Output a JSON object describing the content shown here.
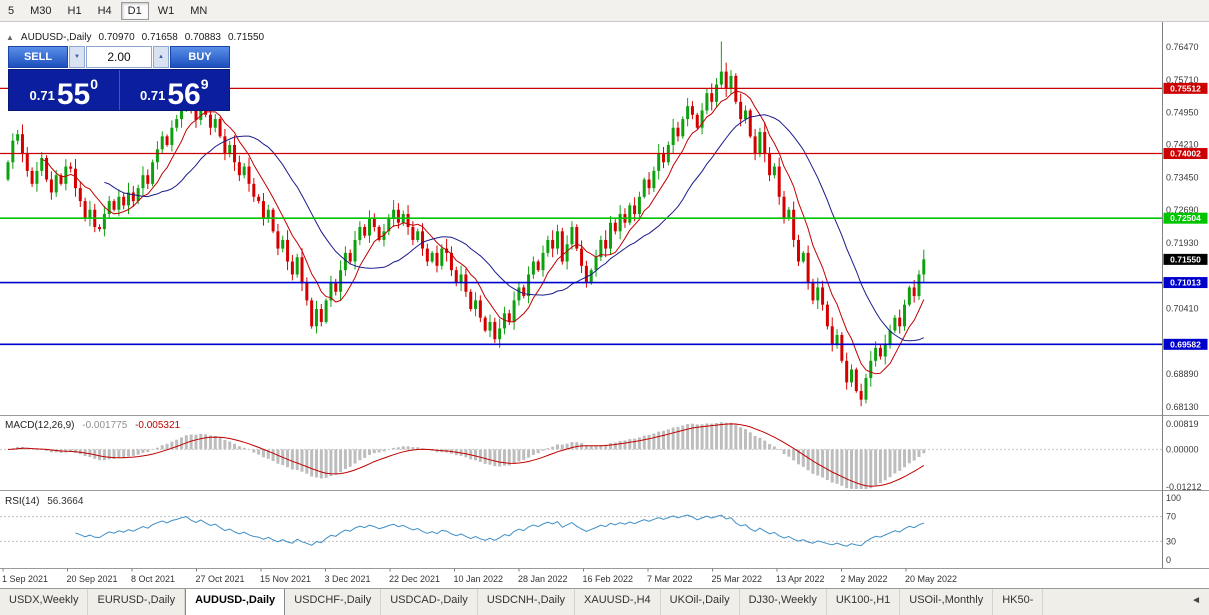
{
  "toolbar": {
    "timeframes": [
      {
        "label": "5",
        "active": false
      },
      {
        "label": "M30",
        "active": false
      },
      {
        "label": "H1",
        "active": false
      },
      {
        "label": "H4",
        "active": false
      },
      {
        "label": "D1",
        "active": true
      },
      {
        "label": "W1",
        "active": false
      },
      {
        "label": "MN",
        "active": false
      }
    ]
  },
  "chart": {
    "header": {
      "collapse_icon": "▲",
      "symbol": "AUDUSD-,Daily",
      "open": "0.70970",
      "high": "0.71658",
      "low": "0.70883",
      "close": "0.71550"
    },
    "trade_panel": {
      "sell_label": "SELL",
      "buy_label": "BUY",
      "volume": "2.00",
      "stepper_down_icon": "▼",
      "stepper_up_icon": "▲",
      "sell_price": {
        "prefix": "0.71",
        "big": "55",
        "sup": "0"
      },
      "buy_price": {
        "prefix": "0.71",
        "big": "56",
        "sup": "9"
      }
    },
    "macd_label": {
      "name": "MACD(12,26,9)",
      "value1": "-0.001775",
      "value2": "-0.005321"
    },
    "rsi_label": {
      "name": "RSI(14)",
      "value": "56.3664"
    }
  },
  "chart_data": {
    "type": "candlestick",
    "symbol": "AUDUSD",
    "timeframe": "Daily",
    "x_axis_labels": [
      "1 Sep 2021",
      "20 Sep 2021",
      "8 Oct 2021",
      "27 Oct 2021",
      "15 Nov 2021",
      "3 Dec 2021",
      "22 Dec 2021",
      "10 Jan 2022",
      "28 Jan 2022",
      "16 Feb 2022",
      "7 Mar 2022",
      "25 Mar 2022",
      "13 Apr 2022",
      "2 May 2022",
      "20 May 2022"
    ],
    "price_axis_values": [
      0.7647,
      0.7571,
      0.7495,
      0.7421,
      0.7345,
      0.7269,
      0.7193,
      0.7041,
      0.6889,
      0.6813
    ],
    "ylim": [
      0.6794,
      0.7705
    ],
    "up_color": "#0FA00F",
    "down_color": "#D40000",
    "first_open_pips": 7340,
    "closes_pips": [
      7380,
      7430,
      7445,
      7400,
      7360,
      7330,
      7360,
      7390,
      7340,
      7310,
      7350,
      7330,
      7370,
      7365,
      7320,
      7290,
      7250,
      7270,
      7230,
      7225,
      7260,
      7290,
      7270,
      7300,
      7280,
      7310,
      7290,
      7320,
      7350,
      7330,
      7380,
      7410,
      7440,
      7420,
      7460,
      7480,
      7510,
      7535,
      7500,
      7478,
      7520,
      7490,
      7460,
      7480,
      7440,
      7400,
      7420,
      7380,
      7350,
      7370,
      7330,
      7300,
      7290,
      7250,
      7270,
      7220,
      7180,
      7200,
      7150,
      7120,
      7160,
      7100,
      7060,
      7000,
      7040,
      7010,
      7060,
      7100,
      7080,
      7130,
      7170,
      7150,
      7200,
      7230,
      7210,
      7250,
      7230,
      7200,
      7220,
      7250,
      7270,
      7240,
      7260,
      7230,
      7200,
      7220,
      7180,
      7150,
      7170,
      7140,
      7180,
      7170,
      7130,
      7100,
      7120,
      7080,
      7040,
      7060,
      7020,
      6990,
      7010,
      6970,
      6995,
      7030,
      7010,
      7060,
      7090,
      7070,
      7120,
      7150,
      7130,
      7170,
      7200,
      7180,
      7220,
      7150,
      7190,
      7230,
      7180,
      7140,
      7100,
      7130,
      7160,
      7200,
      7180,
      7240,
      7220,
      7260,
      7240,
      7280,
      7260,
      7300,
      7340,
      7320,
      7360,
      7400,
      7380,
      7420,
      7460,
      7440,
      7480,
      7510,
      7490,
      7460,
      7500,
      7540,
      7520,
      7560,
      7590,
      7550,
      7580,
      7520,
      7480,
      7500,
      7440,
      7400,
      7450,
      7400,
      7350,
      7370,
      7300,
      7250,
      7270,
      7200,
      7150,
      7170,
      7100,
      7060,
      7090,
      7050,
      7000,
      6960,
      6980,
      6920,
      6870,
      6900,
      6850,
      6830,
      6880,
      6920,
      6950,
      6930,
      6960,
      6990,
      7020,
      7000,
      7050,
      7090,
      7070,
      7120,
      7155
    ],
    "spike": {
      "index": 148,
      "high": 0.766
    },
    "moving_averages": [
      {
        "period": 8,
        "color": "#C00000"
      },
      {
        "period": 21,
        "color": "#1A1A8C"
      }
    ],
    "levels": [
      {
        "value": 0.75512,
        "label": "0.75512",
        "color": "#CC0000",
        "width": 1.3
      },
      {
        "value": 0.74002,
        "label": "0.74002",
        "color": "#CC0000",
        "width": 1.3
      },
      {
        "value": 0.72504,
        "label": "0.72504",
        "color": "#00C400",
        "width": 1.6
      },
      {
        "value": 0.71013,
        "label": "0.71013",
        "color": "#0000CC",
        "width": 1.6
      },
      {
        "value": 0.69582,
        "label": "0.69582",
        "color": "#0000CC",
        "width": 1.6
      }
    ],
    "current_price": {
      "value": 0.7155,
      "label": "0.71550",
      "color": "#000000"
    },
    "macd": {
      "fast": 12,
      "slow": 26,
      "signal": 9,
      "histogram_color": "#BDBDBD",
      "signal_color": "#C00000",
      "axis": [
        {
          "value": 0.00819,
          "label": "0.00819"
        },
        {
          "value": 0.0,
          "label": "0.00000"
        },
        {
          "value": -0.01212,
          "label": "-0.01212"
        }
      ]
    },
    "rsi": {
      "period": 14,
      "color": "#3E8FC7",
      "levels": [
        70,
        30
      ],
      "axis": [
        {
          "value": 100,
          "label": "100"
        },
        {
          "value": 70,
          "label": "70"
        },
        {
          "value": 30,
          "label": "30"
        },
        {
          "value": 0,
          "label": "0"
        }
      ]
    }
  },
  "tabs": {
    "scroll_left_icon": "◄",
    "items": [
      {
        "label": "USDX,Weekly",
        "active": false
      },
      {
        "label": "EURUSD-,Daily",
        "active": false
      },
      {
        "label": "AUDUSD-,Daily",
        "active": true
      },
      {
        "label": "USDCHF-,Daily",
        "active": false
      },
      {
        "label": "USDCAD-,Daily",
        "active": false
      },
      {
        "label": "USDCNH-,Daily",
        "active": false
      },
      {
        "label": "XAUUSD-,H4",
        "active": false
      },
      {
        "label": "UKOil-,Daily",
        "active": false
      },
      {
        "label": "DJ30-,Weekly",
        "active": false
      },
      {
        "label": "UK100-,H1",
        "active": false
      },
      {
        "label": "USOil-,Monthly",
        "active": false
      },
      {
        "label": "HK50-",
        "active": false
      }
    ]
  }
}
